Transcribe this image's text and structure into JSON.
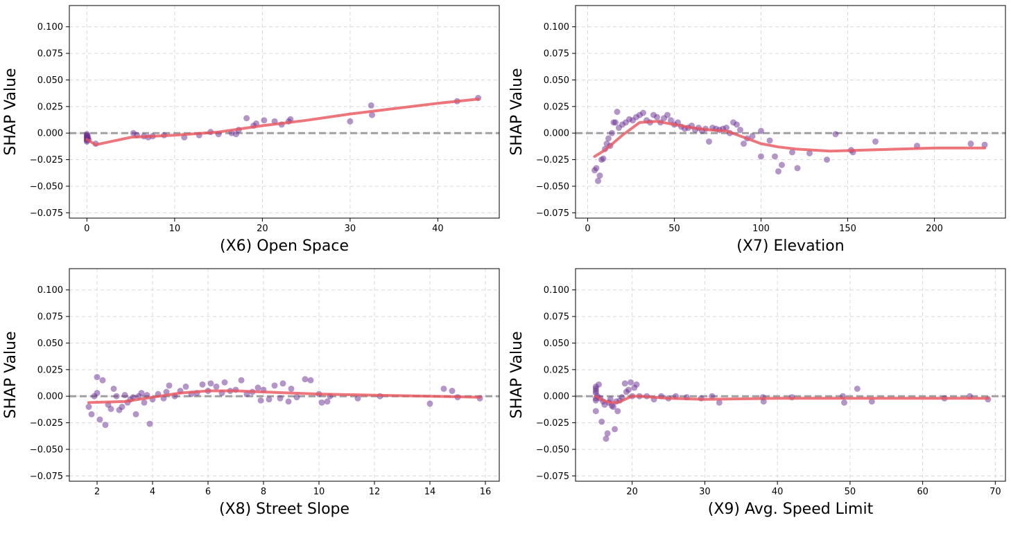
{
  "chart_data": [
    {
      "id": "x6",
      "type": "scatter",
      "xlabel": "(X6) Open Space",
      "ylabel": "SHAP Value",
      "xlim": [
        -2,
        47
      ],
      "ylim": [
        -0.08,
        0.12
      ],
      "xticks": [
        0,
        10,
        20,
        30,
        40
      ],
      "xtick_labels": [
        "0",
        "10",
        "20",
        "30",
        "40"
      ],
      "yticks": [
        -0.075,
        -0.05,
        -0.025,
        0.0,
        0.025,
        0.05,
        0.075,
        0.1
      ],
      "ytick_labels": [
        "−0.075",
        "−0.050",
        "−0.025",
        "0.000",
        "0.025",
        "0.050",
        "0.075",
        "0.100"
      ],
      "grid": true,
      "baseline": 0.0,
      "points": [
        [
          0,
          -0.001
        ],
        [
          0,
          -0.002
        ],
        [
          0,
          -0.003
        ],
        [
          0,
          -0.004
        ],
        [
          0,
          -0.005
        ],
        [
          0,
          -0.006
        ],
        [
          0,
          -0.007
        ],
        [
          0,
          -0.008
        ],
        [
          0.1,
          -0.003
        ],
        [
          0.1,
          -0.005
        ],
        [
          0.2,
          -0.006
        ],
        [
          1,
          -0.01
        ],
        [
          5.3,
          0.0
        ],
        [
          5.7,
          -0.002
        ],
        [
          6.5,
          -0.003
        ],
        [
          7,
          -0.004
        ],
        [
          7.5,
          -0.003
        ],
        [
          8.8,
          -0.002
        ],
        [
          11.1,
          -0.004
        ],
        [
          12.8,
          -0.002
        ],
        [
          14.1,
          0.001
        ],
        [
          15,
          -0.001
        ],
        [
          16.5,
          0.0
        ],
        [
          17,
          -0.001
        ],
        [
          17.3,
          0.003
        ],
        [
          18.2,
          0.014
        ],
        [
          19,
          0.007
        ],
        [
          19.3,
          0.009
        ],
        [
          20.2,
          0.012
        ],
        [
          21.4,
          0.011
        ],
        [
          22.2,
          0.008
        ],
        [
          23,
          0.011
        ],
        [
          23.2,
          0.013
        ],
        [
          30,
          0.011
        ],
        [
          32.4,
          0.026
        ],
        [
          32.5,
          0.017
        ],
        [
          42.2,
          0.03
        ],
        [
          44.6,
          0.033
        ]
      ],
      "trend": [
        [
          0,
          -0.006
        ],
        [
          1,
          -0.011
        ],
        [
          5,
          -0.004
        ],
        [
          10,
          -0.002
        ],
        [
          15,
          0.001
        ],
        [
          20,
          0.007
        ],
        [
          25,
          0.012
        ],
        [
          30,
          0.018
        ],
        [
          35,
          0.023
        ],
        [
          40,
          0.028
        ],
        [
          44.6,
          0.032
        ]
      ]
    },
    {
      "id": "x7",
      "type": "scatter",
      "xlabel": "(X7) Elevation",
      "ylabel": "SHAP Value",
      "xlim": [
        -7,
        241
      ],
      "ylim": [
        -0.08,
        0.12
      ],
      "xticks": [
        0,
        50,
        100,
        150,
        200
      ],
      "xtick_labels": [
        "0",
        "50",
        "100",
        "150",
        "200"
      ],
      "yticks": [
        -0.075,
        -0.05,
        -0.025,
        0.0,
        0.025,
        0.05,
        0.075,
        0.1
      ],
      "ytick_labels": [
        "−0.075",
        "−0.050",
        "−0.025",
        "0.000",
        "0.025",
        "0.050",
        "0.075",
        "0.100"
      ],
      "grid": true,
      "baseline": 0.0,
      "points": [
        [
          4,
          -0.035
        ],
        [
          5,
          -0.033
        ],
        [
          6,
          -0.045
        ],
        [
          7,
          -0.04
        ],
        [
          8,
          -0.025
        ],
        [
          9,
          -0.024
        ],
        [
          10,
          -0.015
        ],
        [
          11,
          -0.01
        ],
        [
          12,
          -0.005
        ],
        [
          13,
          -0.012
        ],
        [
          14,
          0.0
        ],
        [
          15,
          0.01
        ],
        [
          16,
          0.01
        ],
        [
          17,
          0.02
        ],
        [
          18,
          0.005
        ],
        [
          20,
          0.008
        ],
        [
          22,
          0.01
        ],
        [
          24,
          0.013
        ],
        [
          26,
          0.012
        ],
        [
          28,
          0.015
        ],
        [
          30,
          0.017
        ],
        [
          32,
          0.019
        ],
        [
          34,
          0.012
        ],
        [
          36,
          0.01
        ],
        [
          38,
          0.017
        ],
        [
          40,
          0.015
        ],
        [
          42,
          0.01
        ],
        [
          44,
          0.014
        ],
        [
          46,
          0.017
        ],
        [
          48,
          0.012
        ],
        [
          50,
          0.008
        ],
        [
          52,
          0.01
        ],
        [
          54,
          0.006
        ],
        [
          56,
          0.004
        ],
        [
          58,
          0.005
        ],
        [
          60,
          0.007
        ],
        [
          62,
          0.003
        ],
        [
          64,
          0.005
        ],
        [
          66,
          0.002
        ],
        [
          68,
          0.004
        ],
        [
          70,
          -0.008
        ],
        [
          72,
          0.005
        ],
        [
          74,
          0.004
        ],
        [
          76,
          0.003
        ],
        [
          78,
          0.004
        ],
        [
          80,
          0.005
        ],
        [
          82,
          0.0
        ],
        [
          84,
          0.01
        ],
        [
          86,
          0.008
        ],
        [
          88,
          0.003
        ],
        [
          90,
          -0.01
        ],
        [
          92,
          -0.005
        ],
        [
          95,
          -0.003
        ],
        [
          100,
          0.002
        ],
        [
          100,
          -0.022
        ],
        [
          105,
          -0.007
        ],
        [
          108,
          -0.022
        ],
        [
          110,
          -0.036
        ],
        [
          112,
          -0.03
        ],
        [
          118,
          -0.018
        ],
        [
          121,
          -0.033
        ],
        [
          128,
          -0.019
        ],
        [
          138,
          -0.025
        ],
        [
          143,
          -0.001
        ],
        [
          152,
          -0.016
        ],
        [
          153,
          -0.018
        ],
        [
          166,
          -0.008
        ],
        [
          190,
          -0.012
        ],
        [
          221,
          -0.01
        ],
        [
          229,
          -0.011
        ]
      ],
      "trend": [
        [
          4,
          -0.022
        ],
        [
          10,
          -0.016
        ],
        [
          20,
          -0.002
        ],
        [
          30,
          0.01
        ],
        [
          40,
          0.011
        ],
        [
          50,
          0.008
        ],
        [
          60,
          0.005
        ],
        [
          70,
          0.003
        ],
        [
          80,
          0.002
        ],
        [
          90,
          -0.004
        ],
        [
          100,
          -0.01
        ],
        [
          110,
          -0.013
        ],
        [
          120,
          -0.015
        ],
        [
          140,
          -0.017
        ],
        [
          160,
          -0.016
        ],
        [
          180,
          -0.015
        ],
        [
          200,
          -0.014
        ],
        [
          229,
          -0.014
        ]
      ]
    },
    {
      "id": "x8",
      "type": "scatter",
      "xlabel": "(X8) Street Slope",
      "ylabel": "SHAP Value",
      "xlim": [
        1.0,
        16.5
      ],
      "ylim": [
        -0.08,
        0.12
      ],
      "xticks": [
        2,
        4,
        6,
        8,
        10,
        12,
        14,
        16
      ],
      "xtick_labels": [
        "2",
        "4",
        "6",
        "8",
        "10",
        "12",
        "14",
        "16"
      ],
      "yticks": [
        -0.075,
        -0.05,
        -0.025,
        0.0,
        0.025,
        0.05,
        0.075,
        0.1
      ],
      "ytick_labels": [
        "−0.075",
        "−0.050",
        "−0.025",
        "0.000",
        "0.025",
        "0.050",
        "0.075",
        "0.100"
      ],
      "grid": true,
      "baseline": 0.0,
      "points": [
        [
          1.7,
          -0.01
        ],
        [
          1.8,
          -0.017
        ],
        [
          1.9,
          0.0
        ],
        [
          2.0,
          0.003
        ],
        [
          2.0,
          0.018
        ],
        [
          2.1,
          -0.022
        ],
        [
          2.2,
          0.015
        ],
        [
          2.3,
          -0.027
        ],
        [
          2.4,
          -0.008
        ],
        [
          2.5,
          -0.012
        ],
        [
          2.6,
          0.007
        ],
        [
          2.7,
          0.0
        ],
        [
          2.8,
          -0.013
        ],
        [
          2.9,
          -0.01
        ],
        [
          3.0,
          0.001
        ],
        [
          3.1,
          -0.006
        ],
        [
          3.2,
          -0.003
        ],
        [
          3.3,
          -0.001
        ],
        [
          3.4,
          -0.017
        ],
        [
          3.5,
          0.0
        ],
        [
          3.6,
          0.003
        ],
        [
          3.7,
          -0.006
        ],
        [
          3.8,
          0.001
        ],
        [
          3.9,
          -0.026
        ],
        [
          4.0,
          -0.003
        ],
        [
          4.2,
          0.002
        ],
        [
          4.4,
          -0.002
        ],
        [
          4.5,
          0.004
        ],
        [
          4.6,
          0.01
        ],
        [
          4.8,
          0.0
        ],
        [
          5.0,
          0.005
        ],
        [
          5.2,
          0.009
        ],
        [
          5.4,
          0.002
        ],
        [
          5.6,
          0.003
        ],
        [
          5.8,
          0.011
        ],
        [
          6.0,
          0.005
        ],
        [
          6.1,
          0.012
        ],
        [
          6.3,
          0.009
        ],
        [
          6.5,
          0.003
        ],
        [
          6.6,
          0.013
        ],
        [
          6.8,
          0.005
        ],
        [
          7.0,
          0.006
        ],
        [
          7.2,
          0.015
        ],
        [
          7.4,
          0.002
        ],
        [
          7.6,
          0.004
        ],
        [
          7.8,
          0.008
        ],
        [
          7.9,
          -0.004
        ],
        [
          8.0,
          0.006
        ],
        [
          8.2,
          -0.003
        ],
        [
          8.4,
          0.01
        ],
        [
          8.6,
          -0.002
        ],
        [
          8.7,
          0.012
        ],
        [
          8.9,
          -0.005
        ],
        [
          9.0,
          0.007
        ],
        [
          9.2,
          -0.001
        ],
        [
          9.5,
          0.016
        ],
        [
          9.7,
          0.015
        ],
        [
          10.0,
          0.002
        ],
        [
          10.1,
          -0.006
        ],
        [
          10.3,
          -0.005
        ],
        [
          10.4,
          0.0
        ],
        [
          11.4,
          -0.002
        ],
        [
          12.2,
          0.0
        ],
        [
          14.0,
          -0.007
        ],
        [
          14.5,
          0.007
        ],
        [
          14.8,
          0.005
        ],
        [
          15.0,
          -0.001
        ],
        [
          15.8,
          -0.002
        ]
      ],
      "trend": [
        [
          1.7,
          -0.006
        ],
        [
          3,
          -0.005
        ],
        [
          4,
          -0.001
        ],
        [
          5,
          0.003
        ],
        [
          6,
          0.005
        ],
        [
          7,
          0.005
        ],
        [
          8,
          0.004
        ],
        [
          9,
          0.003
        ],
        [
          10,
          0.002
        ],
        [
          12,
          0.001
        ],
        [
          14,
          0.0
        ],
        [
          15.8,
          -0.001
        ]
      ]
    },
    {
      "id": "x9",
      "type": "scatter",
      "xlabel": "(X9) Avg. Speed Limit",
      "ylabel": "SHAP Value",
      "xlim": [
        12.2,
        71.4
      ],
      "ylim": [
        -0.08,
        0.12
      ],
      "xticks": [
        20,
        30,
        40,
        50,
        60,
        70
      ],
      "xtick_labels": [
        "20",
        "30",
        "40",
        "50",
        "60",
        "70"
      ],
      "yticks": [
        -0.075,
        -0.05,
        -0.025,
        0.0,
        0.025,
        0.05,
        0.075,
        0.1
      ],
      "ytick_labels": [
        "−0.075",
        "−0.050",
        "−0.025",
        "0.000",
        "0.025",
        "0.050",
        "0.075",
        "0.100"
      ],
      "grid": true,
      "baseline": 0.0,
      "points": [
        [
          15,
          0.009
        ],
        [
          15,
          0.007
        ],
        [
          15,
          0.005
        ],
        [
          15,
          0.003
        ],
        [
          15,
          -0.002
        ],
        [
          15,
          -0.004
        ],
        [
          15,
          -0.014
        ],
        [
          15.2,
          0.0
        ],
        [
          15.4,
          0.011
        ],
        [
          15.6,
          -0.002
        ],
        [
          15.8,
          -0.024
        ],
        [
          16,
          -0.005
        ],
        [
          16.2,
          -0.008
        ],
        [
          16.4,
          -0.04
        ],
        [
          16.6,
          -0.035
        ],
        [
          16.8,
          -0.006
        ],
        [
          17,
          -0.003
        ],
        [
          17.2,
          -0.009
        ],
        [
          17.4,
          -0.01
        ],
        [
          17.6,
          -0.031
        ],
        [
          17.8,
          -0.005
        ],
        [
          18,
          -0.014
        ],
        [
          18.3,
          -0.004
        ],
        [
          18.6,
          -0.001
        ],
        [
          19,
          0.012
        ],
        [
          19.2,
          0.004
        ],
        [
          19.5,
          0.006
        ],
        [
          19.8,
          0.013
        ],
        [
          20,
          0.0
        ],
        [
          20.3,
          0.008
        ],
        [
          20.6,
          0.011
        ],
        [
          21,
          0.0
        ],
        [
          22,
          0.0
        ],
        [
          23,
          -0.003
        ],
        [
          24,
          0.0
        ],
        [
          25,
          -0.002
        ],
        [
          26,
          0.0
        ],
        [
          27.5,
          -0.001
        ],
        [
          29.5,
          -0.002
        ],
        [
          31,
          0.0
        ],
        [
          32,
          -0.006
        ],
        [
          38,
          -0.001
        ],
        [
          38.1,
          -0.005
        ],
        [
          42,
          -0.001
        ],
        [
          49,
          0.0
        ],
        [
          49.2,
          -0.006
        ],
        [
          51,
          0.007
        ],
        [
          53,
          -0.005
        ],
        [
          63,
          -0.002
        ],
        [
          66.5,
          0.0
        ],
        [
          69,
          -0.003
        ]
      ],
      "trend": [
        [
          15,
          0.0
        ],
        [
          16,
          -0.004
        ],
        [
          17,
          -0.006
        ],
        [
          18,
          -0.006
        ],
        [
          19,
          -0.003
        ],
        [
          20,
          0.0
        ],
        [
          21,
          0.0
        ],
        [
          23,
          -0.001
        ],
        [
          25,
          -0.002
        ],
        [
          30,
          -0.003
        ],
        [
          40,
          -0.002
        ],
        [
          50,
          -0.002
        ],
        [
          60,
          -0.002
        ],
        [
          69,
          -0.002
        ]
      ]
    }
  ],
  "colors": {
    "points": "#6a2c91",
    "trend": "#e8545b",
    "baseline": "#a0a0a0",
    "grid": "#d8d8d8"
  }
}
